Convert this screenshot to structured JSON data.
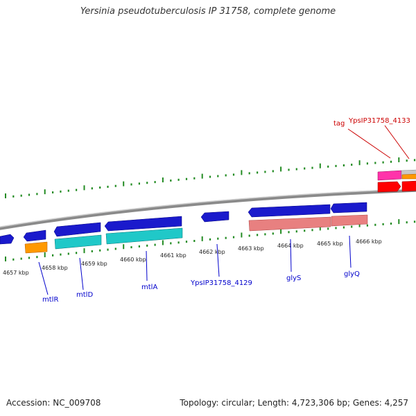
{
  "title": "Yersinia pseudotuberculosis IP 31758, complete genome",
  "footer": {
    "accession": "Accession: NC_009708",
    "summary": "Topology: circular; Length: 4,723,306 bp; Genes: 4,257"
  },
  "ticks": [
    {
      "label": "4657 kbp",
      "value": 4657
    },
    {
      "label": "4658 kbp",
      "value": 4658
    },
    {
      "label": "4659 kbp",
      "value": 4659
    },
    {
      "label": "4660 kbp",
      "value": 4660
    },
    {
      "label": "4661 kbp",
      "value": 4661
    },
    {
      "label": "4662 kbp",
      "value": 4662
    },
    {
      "label": "4663 kbp",
      "value": 4663
    },
    {
      "label": "4664 kbp",
      "value": 4664
    },
    {
      "label": "4665 kbp",
      "value": 4665
    },
    {
      "label": "4666 kbp",
      "value": 4666
    }
  ],
  "gene_labels": [
    {
      "text": "mtlR",
      "color": "#0000cc"
    },
    {
      "text": "mtlD",
      "color": "#0000cc"
    },
    {
      "text": "mtlA",
      "color": "#0000cc"
    },
    {
      "text": "YpsIP31758_4129",
      "color": "#0000cc"
    },
    {
      "text": "glyS",
      "color": "#0000cc"
    },
    {
      "text": "glyQ",
      "color": "#0000cc"
    },
    {
      "text": "tag",
      "color": "#cc0000"
    },
    {
      "text": "YpsIP31758_4133",
      "color": "#cc0000"
    }
  ],
  "colors": {
    "backbone": "#8a8a8a",
    "tick": "#228b22",
    "gene_blue": "#1a1acc",
    "cyan": "#20c8c8",
    "orange": "#ff9900",
    "salmon": "#e88080",
    "red": "#ff0000",
    "magenta": "#ff33aa",
    "gray": "#c8c8c8"
  }
}
